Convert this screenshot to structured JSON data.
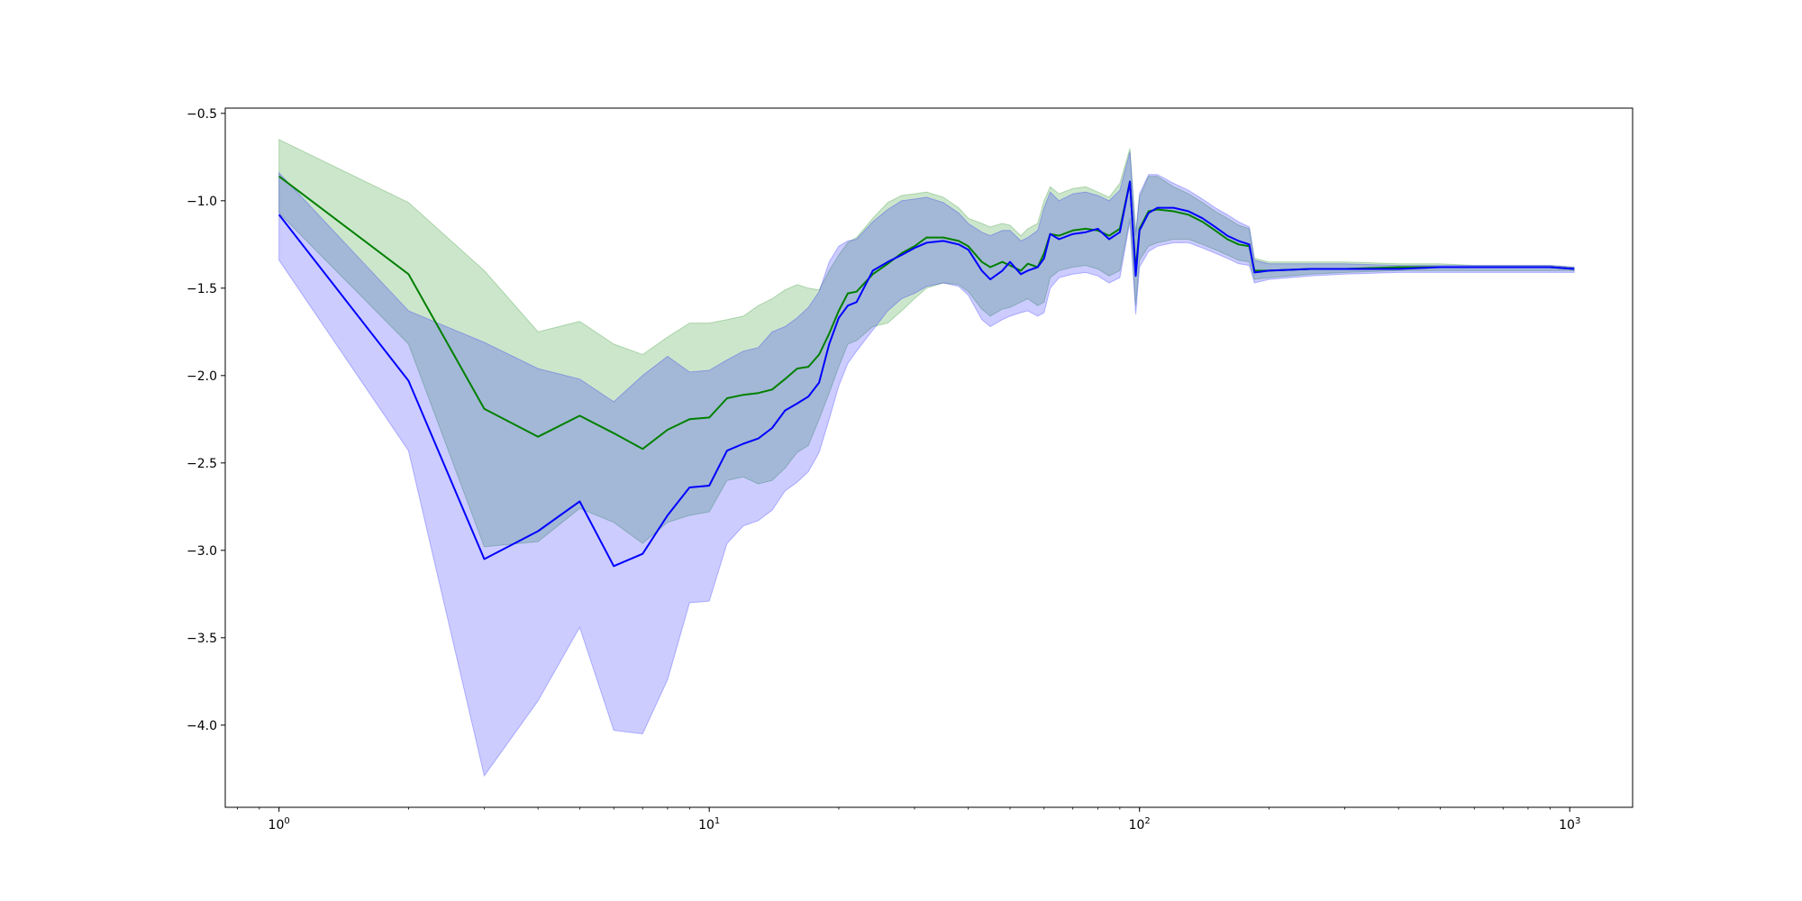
{
  "chart_data": {
    "type": "line",
    "xscale": "log",
    "xlim": [
      0.75,
      1400
    ],
    "ylim": [
      -4.47,
      -0.47
    ],
    "grid": false,
    "legend": "none",
    "x_ticks": [
      {
        "value": 1,
        "base": "10",
        "exp": "0"
      },
      {
        "value": 10,
        "base": "10",
        "exp": "1"
      },
      {
        "value": 100,
        "base": "10",
        "exp": "2"
      },
      {
        "value": 1000,
        "base": "10",
        "exp": "3"
      }
    ],
    "y_ticks": [
      {
        "value": -0.5,
        "label": "−0.5"
      },
      {
        "value": -1.0,
        "label": "−1.0"
      },
      {
        "value": -1.5,
        "label": "−1.5"
      },
      {
        "value": -2.0,
        "label": "−2.0"
      },
      {
        "value": -2.5,
        "label": "−2.5"
      },
      {
        "value": -3.0,
        "label": "−3.0"
      },
      {
        "value": -3.5,
        "label": "−3.5"
      },
      {
        "value": -4.0,
        "label": "−4.0"
      }
    ],
    "series": [
      {
        "color": "#008000",
        "band_color": "#008000",
        "band_opacity": 0.2,
        "x": [
          1,
          2,
          3,
          4,
          5,
          6,
          7,
          8,
          9,
          10,
          11,
          12,
          13,
          14,
          15,
          16,
          17,
          18,
          19,
          20,
          21,
          22,
          24,
          26,
          28,
          30,
          32,
          35,
          38,
          40,
          43,
          45,
          48,
          50,
          53,
          55,
          58,
          60,
          62,
          65,
          70,
          75,
          80,
          85,
          90,
          95,
          98,
          100,
          105,
          110,
          120,
          130,
          140,
          150,
          160,
          170,
          180,
          185,
          200,
          250,
          300,
          400,
          500,
          600,
          700,
          800,
          900,
          1024
        ],
        "y": [
          -0.86,
          -1.42,
          -2.19,
          -2.35,
          -2.23,
          -2.33,
          -2.42,
          -2.31,
          -2.25,
          -2.24,
          -2.13,
          -2.11,
          -2.1,
          -2.08,
          -2.02,
          -1.96,
          -1.95,
          -1.88,
          -1.76,
          -1.63,
          -1.53,
          -1.52,
          -1.42,
          -1.36,
          -1.3,
          -1.26,
          -1.21,
          -1.21,
          -1.23,
          -1.26,
          -1.35,
          -1.38,
          -1.35,
          -1.37,
          -1.4,
          -1.36,
          -1.38,
          -1.3,
          -1.19,
          -1.2,
          -1.17,
          -1.16,
          -1.17,
          -1.2,
          -1.16,
          -0.89,
          -1.4,
          -1.16,
          -1.06,
          -1.05,
          -1.06,
          -1.08,
          -1.12,
          -1.17,
          -1.22,
          -1.25,
          -1.26,
          -1.4,
          -1.4,
          -1.39,
          -1.39,
          -1.38,
          -1.38,
          -1.38,
          -1.38,
          -1.38,
          -1.38,
          -1.39
        ],
        "upper": [
          -0.65,
          -1.01,
          -1.4,
          -1.75,
          -1.69,
          -1.82,
          -1.88,
          -1.78,
          -1.7,
          -1.7,
          -1.68,
          -1.66,
          -1.6,
          -1.56,
          -1.51,
          -1.48,
          -1.5,
          -1.51,
          -1.4,
          -1.31,
          -1.24,
          -1.21,
          -1.1,
          -1.01,
          -0.97,
          -0.96,
          -0.95,
          -0.98,
          -1.04,
          -1.1,
          -1.13,
          -1.15,
          -1.13,
          -1.14,
          -1.2,
          -1.16,
          -1.13,
          -1.0,
          -0.92,
          -0.96,
          -0.93,
          -0.92,
          -0.95,
          -0.98,
          -0.9,
          -0.7,
          -1.18,
          -0.98,
          -0.86,
          -0.86,
          -0.92,
          -0.96,
          -1.01,
          -1.06,
          -1.1,
          -1.14,
          -1.16,
          -1.33,
          -1.35,
          -1.35,
          -1.35,
          -1.36,
          -1.36,
          -1.37,
          -1.37,
          -1.37,
          -1.37,
          -1.38
        ],
        "lower": [
          -1.07,
          -1.82,
          -2.98,
          -2.95,
          -2.76,
          -2.84,
          -2.96,
          -2.84,
          -2.8,
          -2.78,
          -2.6,
          -2.58,
          -2.62,
          -2.6,
          -2.53,
          -2.44,
          -2.4,
          -2.25,
          -2.1,
          -1.95,
          -1.82,
          -1.8,
          -1.72,
          -1.7,
          -1.63,
          -1.56,
          -1.5,
          -1.47,
          -1.48,
          -1.52,
          -1.62,
          -1.66,
          -1.62,
          -1.61,
          -1.58,
          -1.56,
          -1.6,
          -1.58,
          -1.44,
          -1.4,
          -1.38,
          -1.37,
          -1.39,
          -1.43,
          -1.4,
          -1.1,
          -1.6,
          -1.34,
          -1.26,
          -1.24,
          -1.22,
          -1.22,
          -1.25,
          -1.28,
          -1.31,
          -1.34,
          -1.35,
          -1.45,
          -1.44,
          -1.42,
          -1.41,
          -1.4,
          -1.4,
          -1.4,
          -1.4,
          -1.4,
          -1.4,
          -1.4
        ]
      },
      {
        "color": "#0000ff",
        "band_color": "#0000ff",
        "band_opacity": 0.2,
        "x": [
          1,
          2,
          3,
          4,
          5,
          6,
          7,
          8,
          9,
          10,
          11,
          12,
          13,
          14,
          15,
          16,
          17,
          18,
          19,
          20,
          21,
          22,
          24,
          26,
          28,
          30,
          32,
          35,
          38,
          40,
          43,
          45,
          48,
          50,
          53,
          55,
          58,
          60,
          62,
          65,
          70,
          75,
          80,
          85,
          90,
          95,
          98,
          100,
          105,
          110,
          120,
          130,
          140,
          150,
          160,
          170,
          180,
          185,
          200,
          250,
          300,
          400,
          500,
          600,
          700,
          800,
          900,
          1024
        ],
        "y": [
          -1.08,
          -2.03,
          -3.05,
          -2.89,
          -2.72,
          -3.09,
          -3.02,
          -2.8,
          -2.64,
          -2.63,
          -2.43,
          -2.39,
          -2.36,
          -2.3,
          -2.2,
          -2.16,
          -2.12,
          -2.04,
          -1.82,
          -1.67,
          -1.6,
          -1.58,
          -1.4,
          -1.35,
          -1.31,
          -1.27,
          -1.24,
          -1.23,
          -1.25,
          -1.28,
          -1.4,
          -1.45,
          -1.4,
          -1.35,
          -1.42,
          -1.4,
          -1.38,
          -1.33,
          -1.19,
          -1.22,
          -1.19,
          -1.18,
          -1.16,
          -1.22,
          -1.18,
          -0.89,
          -1.43,
          -1.17,
          -1.07,
          -1.04,
          -1.04,
          -1.06,
          -1.1,
          -1.15,
          -1.2,
          -1.23,
          -1.25,
          -1.41,
          -1.4,
          -1.39,
          -1.39,
          -1.39,
          -1.38,
          -1.38,
          -1.38,
          -1.38,
          -1.38,
          -1.39
        ],
        "upper": [
          -0.84,
          -1.63,
          -1.81,
          -1.96,
          -2.02,
          -2.15,
          -2.0,
          -1.89,
          -1.98,
          -1.97,
          -1.91,
          -1.86,
          -1.84,
          -1.75,
          -1.72,
          -1.67,
          -1.61,
          -1.52,
          -1.35,
          -1.26,
          -1.23,
          -1.22,
          -1.12,
          -1.05,
          -1.0,
          -0.99,
          -0.98,
          -1.01,
          -1.07,
          -1.13,
          -1.18,
          -1.2,
          -1.17,
          -1.17,
          -1.23,
          -1.21,
          -1.17,
          -1.04,
          -0.95,
          -1.0,
          -0.96,
          -0.95,
          -0.97,
          -1.0,
          -0.94,
          -0.72,
          -1.2,
          -0.96,
          -0.85,
          -0.85,
          -0.9,
          -0.94,
          -0.99,
          -1.04,
          -1.08,
          -1.12,
          -1.15,
          -1.34,
          -1.36,
          -1.36,
          -1.36,
          -1.37,
          -1.37,
          -1.37,
          -1.37,
          -1.37,
          -1.37,
          -1.38
        ],
        "lower": [
          -1.34,
          -2.43,
          -4.29,
          -3.86,
          -3.44,
          -4.03,
          -4.05,
          -3.74,
          -3.3,
          -3.29,
          -2.96,
          -2.86,
          -2.83,
          -2.77,
          -2.66,
          -2.61,
          -2.55,
          -2.44,
          -2.25,
          -2.06,
          -1.93,
          -1.86,
          -1.74,
          -1.63,
          -1.56,
          -1.53,
          -1.49,
          -1.47,
          -1.49,
          -1.54,
          -1.68,
          -1.72,
          -1.68,
          -1.66,
          -1.64,
          -1.63,
          -1.66,
          -1.64,
          -1.5,
          -1.44,
          -1.42,
          -1.41,
          -1.43,
          -1.47,
          -1.44,
          -1.12,
          -1.65,
          -1.38,
          -1.29,
          -1.26,
          -1.24,
          -1.24,
          -1.27,
          -1.3,
          -1.33,
          -1.36,
          -1.37,
          -1.47,
          -1.45,
          -1.43,
          -1.42,
          -1.41,
          -1.41,
          -1.41,
          -1.41,
          -1.41,
          -1.41,
          -1.41
        ]
      }
    ]
  }
}
